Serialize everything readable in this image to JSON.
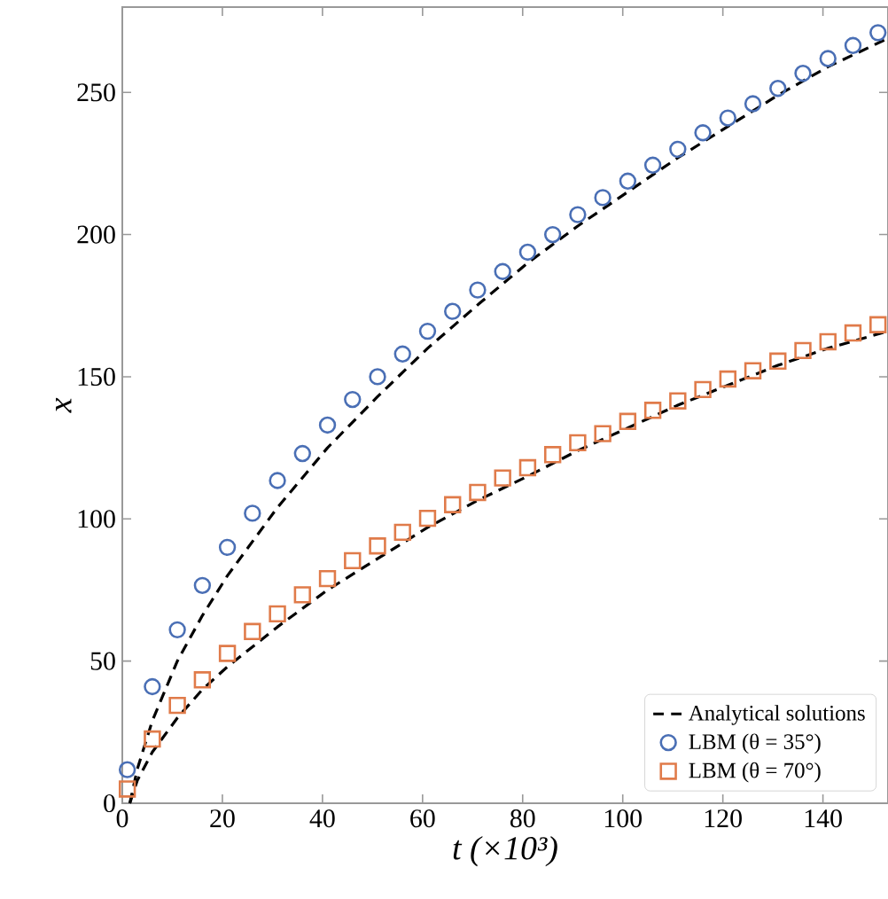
{
  "chart_data": {
    "type": "scatter",
    "xlabel": "t (×10³)",
    "ylabel": "x",
    "xlim": [
      0,
      153
    ],
    "ylim": [
      0,
      280
    ],
    "xticks": [
      0,
      20,
      40,
      60,
      80,
      100,
      120,
      140
    ],
    "yticks": [
      0,
      50,
      100,
      150,
      200,
      250
    ],
    "legend": "bottom right",
    "grid": false,
    "series": [
      {
        "name": "Analytical solutions",
        "type": "line",
        "line_style": "dashed",
        "marker": "none",
        "color": "#000000",
        "x": [
          1.5,
          3,
          6,
          11,
          16,
          21,
          31,
          41,
          51,
          61,
          71.5,
          81,
          91,
          101,
          111,
          121,
          131,
          141,
          153
        ],
        "values": [
          0,
          12,
          29,
          50,
          66,
          80,
          104,
          125,
          143,
          160,
          176,
          190,
          203,
          215,
          227,
          238,
          249,
          259,
          269
        ]
      },
      {
        "type": "line",
        "line_style": "dashed",
        "marker": "none",
        "color": "#000000",
        "x": [
          1.5,
          3,
          6,
          11,
          16,
          21,
          31,
          41,
          51,
          61,
          71,
          81,
          91,
          101,
          111,
          121,
          131,
          141,
          153
        ],
        "values": [
          0,
          8,
          18,
          30,
          40,
          48,
          62,
          75,
          86,
          97,
          106.5,
          115,
          124,
          132,
          140,
          147,
          154,
          160,
          166
        ]
      },
      {
        "name": "LBM (θ = 35°)",
        "marker": "circle",
        "color": "#4a6fb5",
        "x": [
          1,
          6,
          11,
          16,
          21,
          26,
          31,
          36,
          41,
          46,
          51,
          56,
          61,
          66,
          71,
          76,
          81,
          86,
          91,
          96,
          101,
          106,
          111,
          116,
          121,
          126,
          131,
          136,
          141,
          146,
          151
        ],
        "values": [
          11.8,
          41,
          61,
          76.6,
          90,
          102,
          113.5,
          123,
          133,
          142,
          150,
          158,
          166,
          173,
          180.5,
          187,
          193.8,
          200,
          207,
          213,
          218.8,
          224.4,
          230,
          235.8,
          241,
          246,
          251.4,
          256.7,
          261.9,
          266.5,
          271
        ]
      },
      {
        "name": "LBM (θ = 70°)",
        "marker": "square",
        "color": "#e07b4a",
        "x": [
          1,
          6,
          11,
          16,
          21,
          26,
          31,
          36,
          41,
          46,
          51,
          56,
          61,
          66,
          71,
          76,
          81,
          86,
          91,
          96,
          101,
          106,
          111,
          116,
          121,
          126,
          131,
          136,
          141,
          146,
          151
        ],
        "values": [
          5,
          22.6,
          34.4,
          43.4,
          52.7,
          60.4,
          66.6,
          73.3,
          79,
          85.3,
          90.5,
          95.3,
          100.2,
          105,
          109.3,
          114.4,
          118,
          122.6,
          126.8,
          130,
          134.3,
          138.2,
          141.5,
          145.5,
          149.2,
          152.1,
          155.5,
          159.2,
          162.3,
          165.4,
          168.3
        ]
      }
    ]
  }
}
